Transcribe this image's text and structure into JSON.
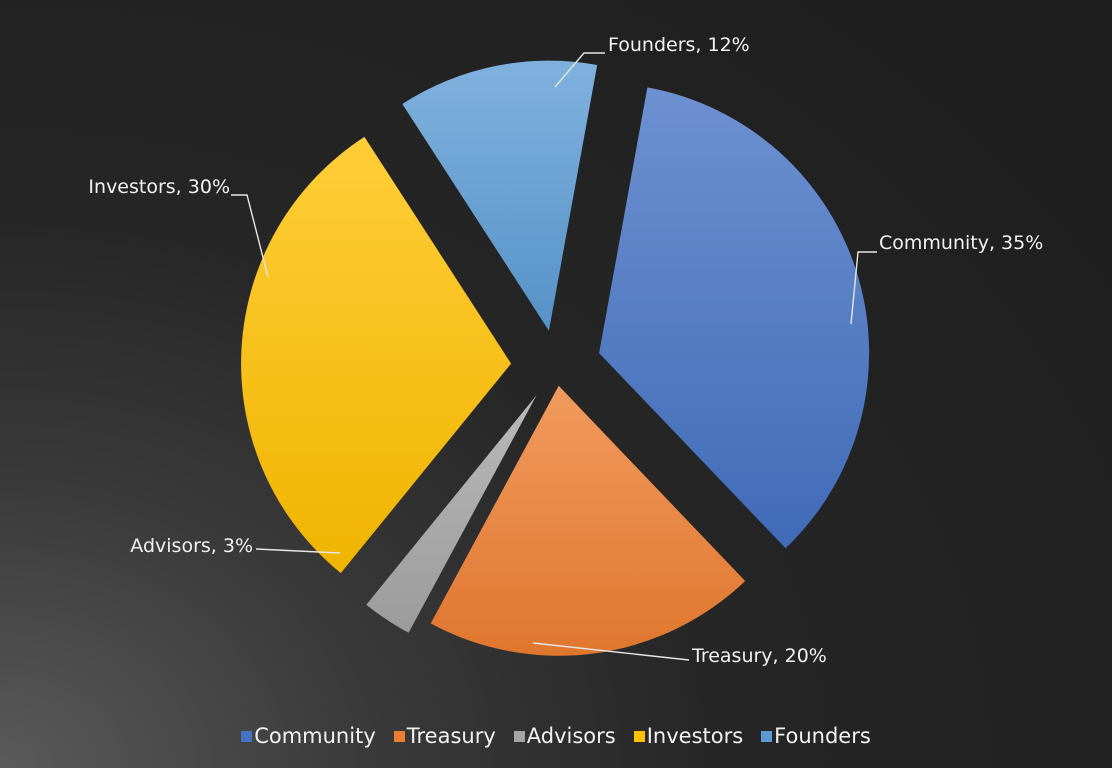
{
  "chart_data": {
    "type": "pie",
    "exploded": true,
    "categories": [
      "Community",
      "Treasury",
      "Advisors",
      "Investors",
      "Founders"
    ],
    "values": [
      35,
      20,
      3,
      30,
      12
    ],
    "unit": "%",
    "data_labels": [
      "Community, 35%",
      "Treasury, 20%",
      "Advisors, 3%",
      "Investors, 30%",
      "Founders, 12%"
    ],
    "colors": [
      "#4472c4",
      "#ed7d31",
      "#a5a5a5",
      "#ffc000",
      "#5b9bd5"
    ],
    "legend": {
      "position": "bottom",
      "entries": [
        "Community",
        "Treasury",
        "Advisors",
        "Investors",
        "Founders"
      ]
    }
  }
}
